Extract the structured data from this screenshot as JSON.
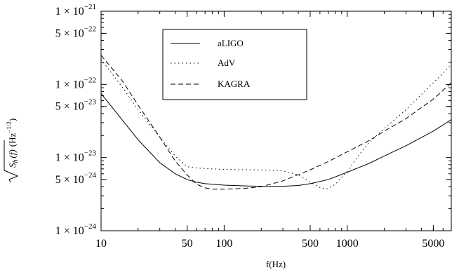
{
  "chart_data": {
    "type": "line",
    "title": "",
    "xlabel": "f(Hz)",
    "ylabel_parts": {
      "sqrt_part": "S",
      "sub": "h",
      "arg": "(f)",
      "unit": "(Hz",
      "unit_exp": "−1/2",
      "close": ")"
    },
    "x_scale": "log",
    "y_scale": "log",
    "xlim": [
      10,
      7000
    ],
    "ylim": [
      1e-24,
      1e-21
    ],
    "grid": false,
    "legend_position": "top-center",
    "x_ticks": [
      {
        "value": 10,
        "label": "10"
      },
      {
        "value": 50,
        "label": "50"
      },
      {
        "value": 100,
        "label": "100"
      },
      {
        "value": 500,
        "label": "500"
      },
      {
        "value": 1000,
        "label": "1000"
      },
      {
        "value": 5000,
        "label": "5000"
      }
    ],
    "y_ticks": [
      {
        "value": 1e-24,
        "mant": "1",
        "exp": "−24"
      },
      {
        "value": 5e-24,
        "mant": "5",
        "exp": "−24"
      },
      {
        "value": 1e-23,
        "mant": "1",
        "exp": "−23"
      },
      {
        "value": 5e-23,
        "mant": "5",
        "exp": "−23"
      },
      {
        "value": 1e-22,
        "mant": "1",
        "exp": "−22"
      },
      {
        "value": 5e-22,
        "mant": "5",
        "exp": "−22"
      },
      {
        "value": 1e-21,
        "mant": "1",
        "exp": "−21"
      }
    ],
    "times_symbol": "×",
    "series": [
      {
        "name": "aLIGO",
        "style": "solid",
        "points": [
          [
            10,
            7.5e-23
          ],
          [
            15,
            3.2e-23
          ],
          [
            20,
            1.75e-23
          ],
          [
            30,
            8.5e-24
          ],
          [
            40,
            6e-24
          ],
          [
            50,
            5e-24
          ],
          [
            60,
            4.6e-24
          ],
          [
            70,
            4.4e-24
          ],
          [
            100,
            4.2e-24
          ],
          [
            150,
            4.1e-24
          ],
          [
            200,
            4.05e-24
          ],
          [
            300,
            4.05e-24
          ],
          [
            400,
            4.15e-24
          ],
          [
            500,
            4.4e-24
          ],
          [
            700,
            5e-24
          ],
          [
            1000,
            6.3e-24
          ],
          [
            1500,
            8.3e-24
          ],
          [
            2000,
            1.05e-23
          ],
          [
            3000,
            1.45e-23
          ],
          [
            5000,
            2.3e-23
          ],
          [
            7000,
            3.3e-23
          ]
        ]
      },
      {
        "name": "AdV",
        "style": "dotted",
        "points": [
          [
            10,
            2.2e-22
          ],
          [
            15,
            9e-23
          ],
          [
            20,
            4.5e-23
          ],
          [
            30,
            1.9e-23
          ],
          [
            40,
            1.05e-23
          ],
          [
            50,
            7.5e-24
          ],
          [
            60,
            7.2e-24
          ],
          [
            80,
            7e-24
          ],
          [
            100,
            6.9e-24
          ],
          [
            150,
            6.8e-24
          ],
          [
            200,
            6.8e-24
          ],
          [
            300,
            6.6e-24
          ],
          [
            400,
            5.8e-24
          ],
          [
            500,
            4.6e-24
          ],
          [
            600,
            3.9e-24
          ],
          [
            680,
            3.7e-24
          ],
          [
            800,
            4.3e-24
          ],
          [
            1000,
            6.5e-24
          ],
          [
            1200,
            1e-23
          ],
          [
            1500,
            1.6e-23
          ],
          [
            2000,
            2.5e-23
          ],
          [
            3000,
            4.5e-23
          ],
          [
            5000,
            1.05e-22
          ],
          [
            7000,
            1.85e-22
          ]
        ]
      },
      {
        "name": "KAGRA",
        "style": "dashed",
        "points": [
          [
            10,
            2.5e-22
          ],
          [
            15,
            1.1e-22
          ],
          [
            20,
            5.2e-23
          ],
          [
            30,
            1.9e-23
          ],
          [
            40,
            9e-24
          ],
          [
            50,
            5.8e-24
          ],
          [
            60,
            4.3e-24
          ],
          [
            70,
            3.85e-24
          ],
          [
            80,
            3.7e-24
          ],
          [
            100,
            3.7e-24
          ],
          [
            150,
            3.8e-24
          ],
          [
            200,
            4e-24
          ],
          [
            300,
            4.8e-24
          ],
          [
            500,
            6.8e-24
          ],
          [
            700,
            8.8e-24
          ],
          [
            1000,
            1.2e-23
          ],
          [
            1500,
            1.7e-23
          ],
          [
            2000,
            2.3e-23
          ],
          [
            3000,
            3.4e-23
          ],
          [
            5000,
            6.3e-23
          ],
          [
            7000,
            1.05e-22
          ]
        ]
      }
    ]
  }
}
